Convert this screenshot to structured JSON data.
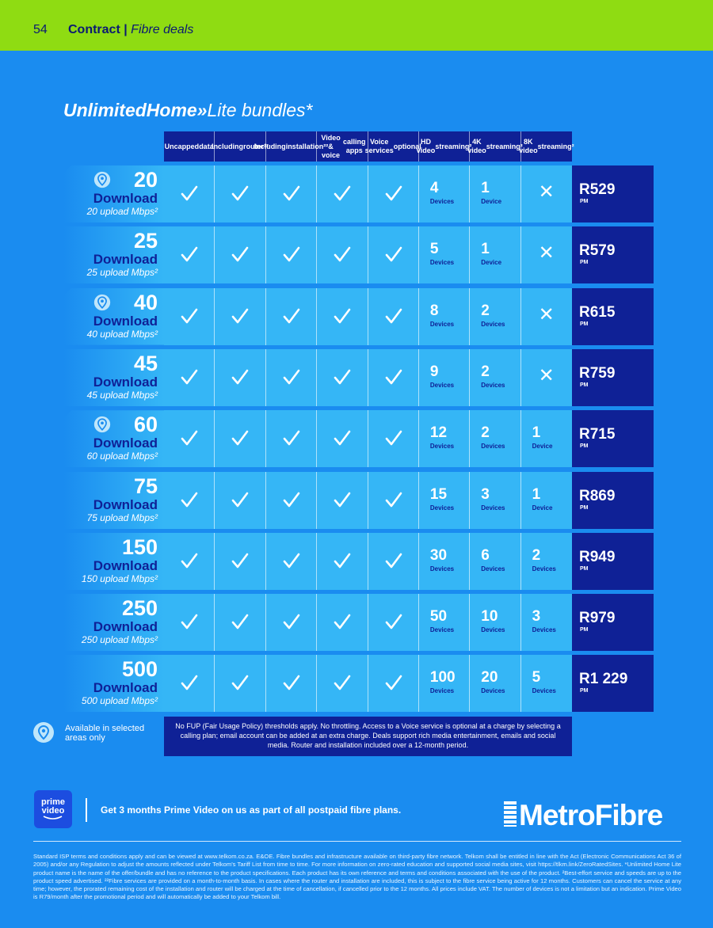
{
  "header": {
    "page_number": "54",
    "section": "Contract",
    "separator": "|",
    "subsection": "Fibre deals"
  },
  "title": {
    "brand": "UnlimitedHome»",
    "suffix": "Lite bundles*"
  },
  "columns": [
    [
      "Uncapped",
      "data"
    ],
    [
      "Including",
      "router²²"
    ],
    [
      "Including",
      "installation²²"
    ],
    [
      "Video & voice",
      "calling apps"
    ],
    [
      "Voice services",
      "optional"
    ],
    [
      "HD video",
      "streaming²"
    ],
    [
      "4K video",
      "streaming²"
    ],
    [
      "8K video",
      "streaming²"
    ]
  ],
  "icons": {
    "check": "check-icon",
    "cross": "cross-icon",
    "pin": "location-pin-icon"
  },
  "colors": {
    "top_bar": "#8fdc12",
    "background": "#1a8cf0",
    "cell": "#35b6f6",
    "dark_blue": "#0f2196"
  },
  "rows": [
    {
      "speed": "20",
      "download": "Download",
      "upload": "20 upload Mbps²",
      "pin": true,
      "hd": "4",
      "hd_unit": "Devices",
      "k4": "1",
      "k4_unit": "Device",
      "k8": "",
      "k8_unit": "",
      "price": "R529",
      "pm": "PM"
    },
    {
      "speed": "25",
      "download": "Download",
      "upload": "25 upload Mbps²",
      "pin": false,
      "hd": "5",
      "hd_unit": "Devices",
      "k4": "1",
      "k4_unit": "Device",
      "k8": "",
      "k8_unit": "",
      "price": "R579",
      "pm": "PM"
    },
    {
      "speed": "40",
      "download": "Download",
      "upload": "40 upload Mbps²",
      "pin": true,
      "hd": "8",
      "hd_unit": "Devices",
      "k4": "2",
      "k4_unit": "Devices",
      "k8": "",
      "k8_unit": "",
      "price": "R615",
      "pm": "PM"
    },
    {
      "speed": "45",
      "download": "Download",
      "upload": "45 upload Mbps²",
      "pin": false,
      "hd": "9",
      "hd_unit": "Devices",
      "k4": "2",
      "k4_unit": "Devices",
      "k8": "",
      "k8_unit": "",
      "price": "R759",
      "pm": "PM"
    },
    {
      "speed": "60",
      "download": "Download",
      "upload": "60 upload Mbps²",
      "pin": true,
      "hd": "12",
      "hd_unit": "Devices",
      "k4": "2",
      "k4_unit": "Devices",
      "k8": "1",
      "k8_unit": "Device",
      "price": "R715",
      "pm": "PM"
    },
    {
      "speed": "75",
      "download": "Download",
      "upload": "75 upload Mbps²",
      "pin": false,
      "hd": "15",
      "hd_unit": "Devices",
      "k4": "3",
      "k4_unit": "Devices",
      "k8": "1",
      "k8_unit": "Device",
      "price": "R869",
      "pm": "PM"
    },
    {
      "speed": "150",
      "download": "Download",
      "upload": "150 upload Mbps²",
      "pin": false,
      "hd": "30",
      "hd_unit": "Devices",
      "k4": "6",
      "k4_unit": "Devices",
      "k8": "2",
      "k8_unit": "Devices",
      "price": "R949",
      "pm": "PM"
    },
    {
      "speed": "250",
      "download": "Download",
      "upload": "250 upload Mbps²",
      "pin": false,
      "hd": "50",
      "hd_unit": "Devices",
      "k4": "10",
      "k4_unit": "Devices",
      "k8": "3",
      "k8_unit": "Devices",
      "price": "R979",
      "pm": "PM"
    },
    {
      "speed": "500",
      "download": "Download",
      "upload": "500 upload Mbps²",
      "pin": false,
      "hd": "100",
      "hd_unit": "Devices",
      "k4": "20",
      "k4_unit": "Devices",
      "k8": "5",
      "k8_unit": "Devices",
      "price": "R1 229",
      "pm": "PM"
    }
  ],
  "legend": {
    "text": "Available in selected areas only"
  },
  "note": "No FUP (Fair Usage Policy) thresholds apply. No throttling. Access to a Voice service is optional at a charge by selecting a calling plan; email account can be added at an extra charge. Deals support rich media entertainment, emails and social media. Router and installation included over a 12-month period.",
  "prime": {
    "logo_line1": "prime",
    "logo_line2": "video",
    "promo": "Get 3 months Prime Video on us as part of all postpaid fibre plans."
  },
  "partner": {
    "metro": "Metro",
    "fibre": "Fibre"
  },
  "fine_print": "Standard ISP terms and conditions apply and can be viewed at www.telkom.co.za. E&OE. Fibre bundles and infrastructure available on third-party fibre network. Telkom shall be entitled in line with the Act (Electronic Communications Act 36 of 2005) and/or any Regulation to adjust the amounts reflected under Telkom's Tariff List from time to time. For more information on zero-rated education and supported social media sites, visit https://tlkm.link/ZeroRatedSites. *Unlimited Home Lite product name is the name of the offer/bundle and has no reference to the product specifications. Each product has its own reference and terms and conditions associated with the use of the product. ²Best-effort service and speeds are up to the product speed advertised. ²²Fibre services are provided on a month-to-month basis. In cases where the router and installation are included, this is subject to the fibre service being active for 12 months. Customers can cancel the service at any time; however, the prorated remaining cost of the installation and router will be charged at the time of cancellation, if cancelled prior to the 12 months. All prices include VAT. The number of devices is not a limitation but an indication. Prime Video is R79/month after the promotional period and will automatically be added to your Telkom bill."
}
